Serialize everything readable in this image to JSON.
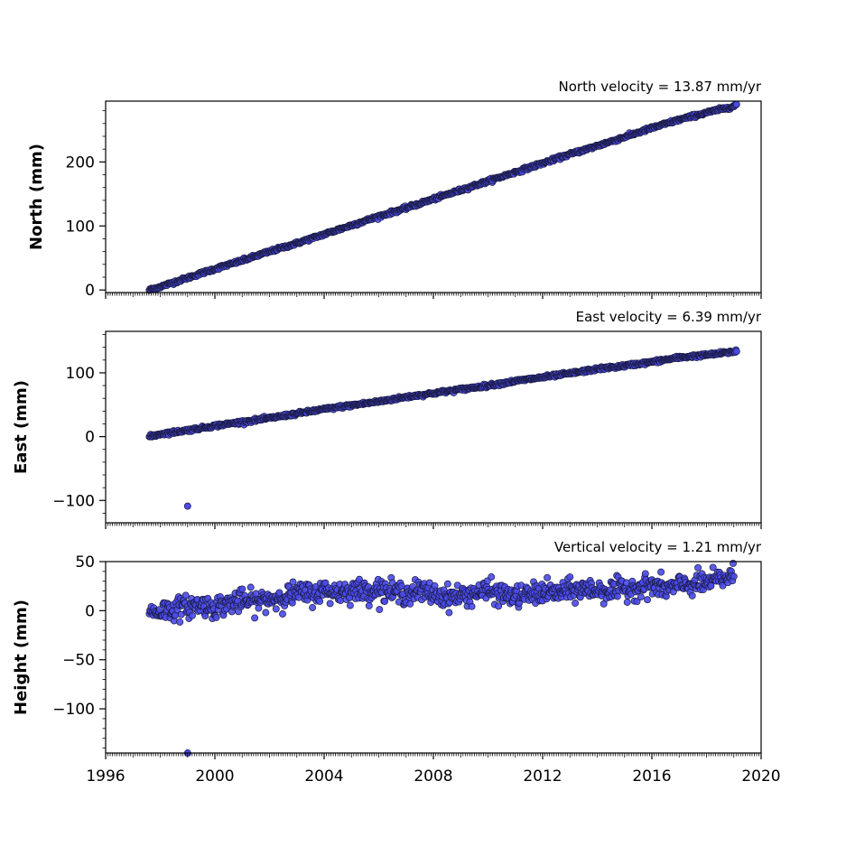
{
  "chart_data": [
    {
      "type": "scatter",
      "title": "North velocity = 13.87 mm/yr",
      "xlabel": "",
      "ylabel": "North (mm)",
      "xlim": [
        1996,
        2020
      ],
      "ylim": [
        -4,
        295
      ],
      "yticks": [
        0,
        100,
        200
      ],
      "xticks": [
        1996,
        2000,
        2004,
        2008,
        2012,
        2016,
        2020
      ],
      "show_xtick_labels": false,
      "marker_color": "#4a4ae8",
      "marker_edge": "#1a1a40",
      "series": [
        {
          "x": [
            1997.6,
            1998.0,
            1999.0,
            2000.0,
            2001.0,
            2002.0,
            2003.0,
            2004.0,
            2005.0,
            2006.0,
            2007.0,
            2008.0,
            2009.0,
            2010.0,
            2011.0,
            2012.0,
            2013.0,
            2014.0,
            2015.0,
            2016.0,
            2017.0,
            2018.0,
            2019.0,
            2019.1
          ],
          "y": [
            0,
            5,
            19,
            33,
            46,
            60,
            73,
            87,
            101,
            115,
            128,
            142,
            156,
            170,
            184,
            198,
            212,
            225,
            239,
            253,
            266,
            277,
            287,
            290
          ]
        }
      ]
    },
    {
      "type": "scatter",
      "title": "East velocity = 6.39 mm/yr",
      "xlabel": "",
      "ylabel": "East (mm)",
      "xlim": [
        1996,
        2020
      ],
      "ylim": [
        -135,
        165
      ],
      "yticks": [
        -100,
        0,
        100
      ],
      "xticks": [
        1996,
        2000,
        2004,
        2008,
        2012,
        2016,
        2020
      ],
      "show_xtick_labels": false,
      "marker_color": "#4a4ae8",
      "marker_edge": "#1a1a40",
      "series": [
        {
          "x": [
            1997.6,
            1998.0,
            1999.0,
            2000.0,
            2001.0,
            2002.0,
            2003.0,
            2004.0,
            2005.0,
            2006.0,
            2007.0,
            2008.0,
            2009.0,
            2010.0,
            2011.0,
            2012.0,
            2013.0,
            2014.0,
            2015.0,
            2016.0,
            2017.0,
            2018.0,
            2019.0,
            2019.1
          ],
          "y": [
            0,
            4,
            10,
            17,
            23,
            29,
            36,
            43,
            49,
            55,
            62,
            68,
            74,
            80,
            87,
            93,
            99,
            106,
            111,
            117,
            124,
            128,
            133,
            135
          ]
        },
        {
          "name": "",
          "x": [
            1999.0
          ],
          "y": [
            -109
          ]
        }
      ]
    },
    {
      "type": "scatter",
      "title": "Vertical velocity = 1.21 mm/yr",
      "xlabel": "",
      "ylabel": "Height (mm)",
      "xlim": [
        1996,
        2020
      ],
      "ylim": [
        -145,
        50
      ],
      "yticks": [
        -100,
        -50,
        0,
        50
      ],
      "xticks": [
        1996,
        2000,
        2004,
        2008,
        2012,
        2016,
        2020
      ],
      "xtick_labels": [
        "1996",
        "2000",
        "2004",
        "2008",
        "2012",
        "2016",
        "2020"
      ],
      "show_xtick_labels": true,
      "marker_color": "#4a4ae8",
      "marker_edge": "#1a1a40",
      "series": [
        {
          "x": [
            1997.6,
            1998.0,
            1998.5,
            1999.0,
            1999.5,
            2000.0,
            2000.5,
            2001.0,
            2001.5,
            2002.0,
            2002.5,
            2003.0,
            2003.5,
            2004.0,
            2004.5,
            2005.0,
            2005.5,
            2006.0,
            2006.5,
            2007.0,
            2007.5,
            2008.0,
            2008.5,
            2009.0,
            2009.5,
            2010.0,
            2010.5,
            2011.0,
            2011.5,
            2012.0,
            2012.5,
            2013.0,
            2013.5,
            2014.0,
            2014.5,
            2015.0,
            2015.5,
            2016.0,
            2016.5,
            2017.0,
            2017.5,
            2018.0,
            2018.5,
            2019.0
          ],
          "y": [
            -2,
            0,
            2,
            4,
            6,
            3,
            8,
            10,
            9,
            12,
            14,
            18,
            17,
            20,
            19,
            21,
            20,
            22,
            19,
            18,
            20,
            17,
            14,
            15,
            18,
            20,
            17,
            14,
            16,
            19,
            18,
            20,
            22,
            21,
            20,
            22,
            24,
            26,
            22,
            25,
            27,
            28,
            32,
            36
          ]
        },
        {
          "name": "",
          "x": [
            1999.0
          ],
          "y": [
            -145
          ]
        }
      ]
    }
  ]
}
